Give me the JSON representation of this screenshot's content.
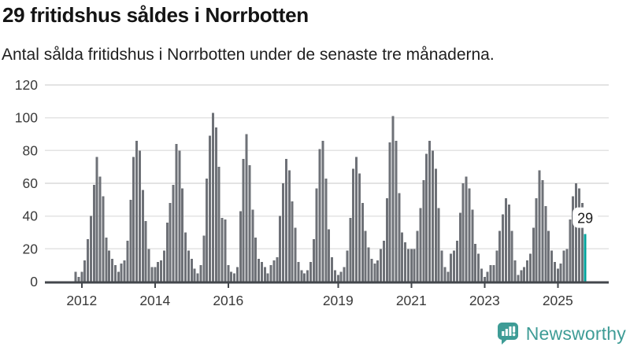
{
  "header": {
    "title": "29 fritidshus såldes i Norrbotten",
    "subtitle": "Antal sålda fritidshus i Norrbotten under de senaste tre månaderna."
  },
  "chart_data": {
    "type": "bar",
    "title": "29 fritidshus såldes i Norrbotten",
    "subtitle": "Antal sålda fritidshus i Norrbotten under de senaste tre månaderna.",
    "ylabel": "",
    "xlabel": "",
    "ylim": [
      0,
      120
    ],
    "yticks": [
      0,
      20,
      40,
      60,
      80,
      100,
      120
    ],
    "grid": true,
    "bar_color": "#6e7177",
    "axis_color": "#43474c",
    "grid_color": "#e3e3e3",
    "tick_label_color": "#3a3a3a",
    "series_note": "monthly bars, first bar ~Nov 2011, last bar highlighted",
    "values": [
      6,
      3,
      6,
      13,
      26,
      40,
      59,
      76,
      64,
      52,
      27,
      19,
      14,
      10,
      6,
      11,
      13,
      25,
      50,
      76,
      86,
      80,
      56,
      37,
      20,
      9,
      9,
      12,
      13,
      19,
      36,
      48,
      59,
      84,
      80,
      57,
      30,
      19,
      14,
      8,
      5,
      10,
      28,
      63,
      89,
      103,
      94,
      70,
      39,
      38,
      10,
      6,
      5,
      9,
      43,
      75,
      90,
      71,
      44,
      27,
      14,
      12,
      9,
      5,
      10,
      13,
      15,
      40,
      60,
      75,
      68,
      49,
      33,
      12,
      7,
      5,
      7,
      12,
      26,
      57,
      81,
      86,
      63,
      32,
      15,
      7,
      4,
      6,
      9,
      19,
      39,
      69,
      76,
      66,
      48,
      31,
      21,
      14,
      11,
      13,
      20,
      25,
      51,
      85,
      101,
      86,
      54,
      30,
      24,
      20,
      20,
      20,
      31,
      45,
      62,
      78,
      86,
      80,
      69,
      45,
      19,
      9,
      6,
      17,
      19,
      25,
      42,
      60,
      64,
      57,
      44,
      23,
      17,
      8,
      3,
      6,
      10,
      10,
      19,
      31,
      41,
      51,
      47,
      31,
      13,
      4,
      7,
      9,
      13,
      17,
      33,
      51,
      68,
      62,
      46,
      31,
      19,
      12,
      8,
      11,
      19,
      20,
      38,
      52,
      60,
      57,
      48,
      29
    ],
    "xticks": [
      {
        "label": "2012",
        "index": 2
      },
      {
        "label": "2014",
        "index": 26
      },
      {
        "label": "2016",
        "index": 50
      },
      {
        "label": "2019",
        "index": 86
      },
      {
        "label": "2021",
        "index": 110
      },
      {
        "label": "2023",
        "index": 134
      },
      {
        "label": "2025",
        "index": 158
      }
    ],
    "highlight": {
      "index": 167,
      "value": 29,
      "label": "29",
      "color": "#00a29b"
    }
  },
  "footer": {
    "brand": "Newsworthy",
    "brand_color": "#3e9c96"
  }
}
